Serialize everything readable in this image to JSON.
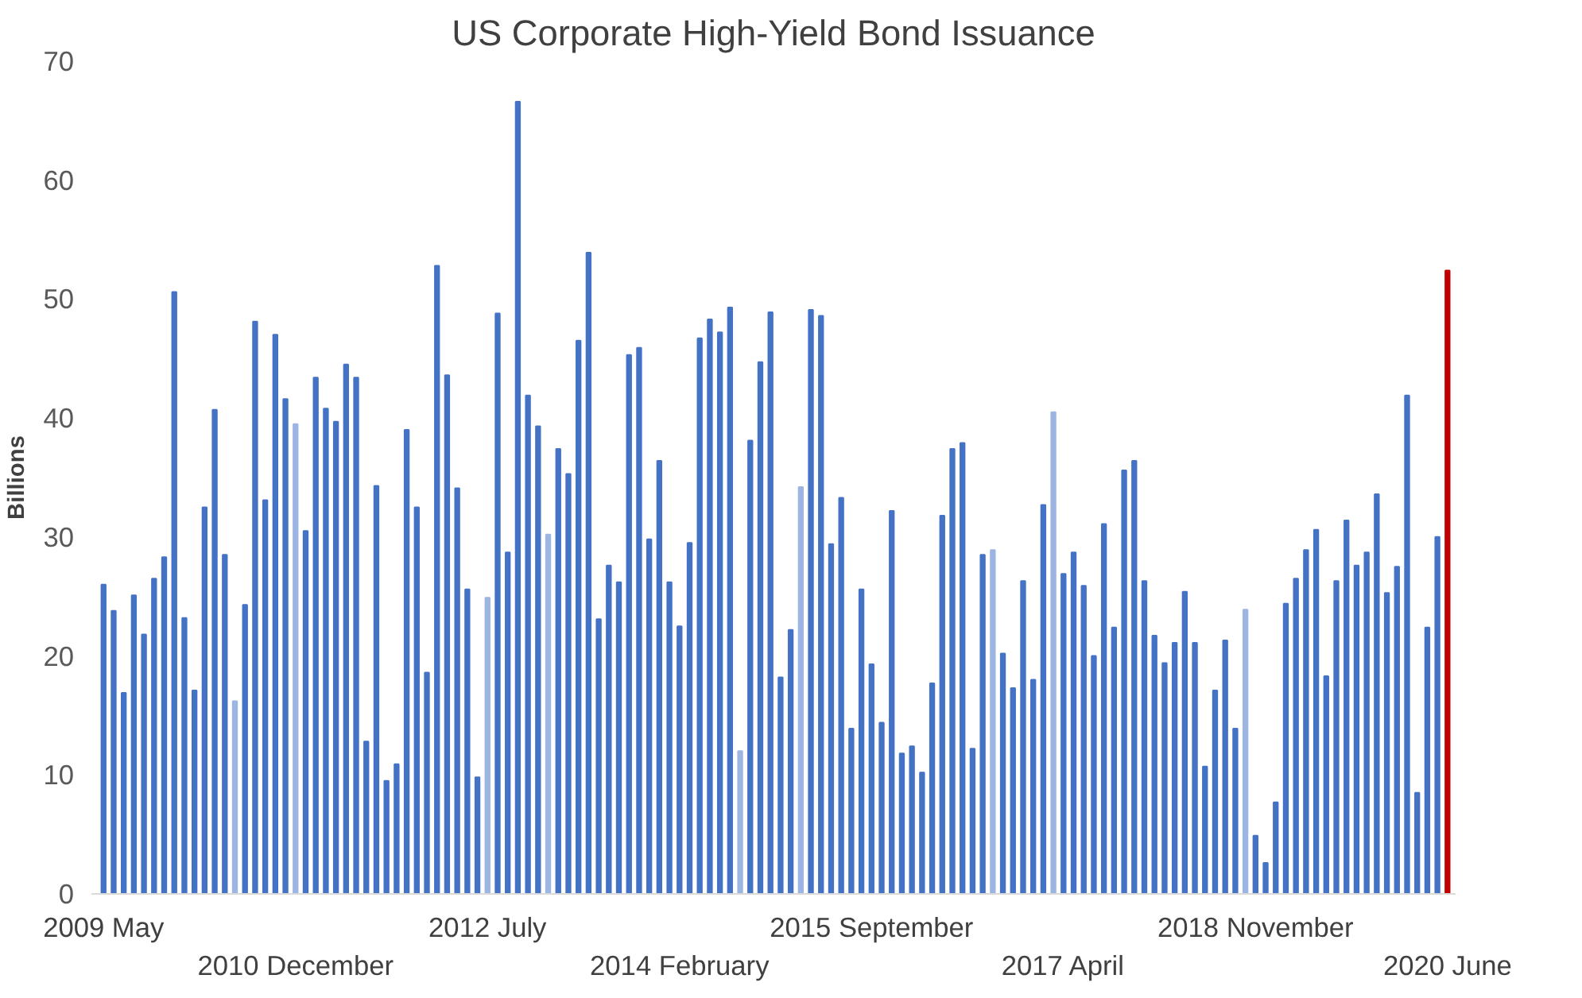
{
  "chart_data": {
    "type": "bar",
    "title": "US Corporate High-Yield Bond Issuance",
    "ylabel": "Billions",
    "categories": [
      "2009 May",
      null,
      null,
      null,
      null,
      null,
      null,
      null,
      null,
      null,
      null,
      null,
      null,
      null,
      null,
      null,
      null,
      null,
      null,
      "2010 December",
      null,
      null,
      null,
      null,
      null,
      null,
      null,
      null,
      null,
      null,
      null,
      null,
      null,
      null,
      null,
      null,
      null,
      null,
      "2012 July",
      null,
      null,
      null,
      null,
      null,
      null,
      null,
      null,
      null,
      null,
      null,
      null,
      null,
      null,
      null,
      null,
      null,
      null,
      "2014 February",
      null,
      null,
      null,
      null,
      null,
      null,
      null,
      null,
      null,
      null,
      null,
      null,
      null,
      null,
      null,
      null,
      null,
      null,
      "2015 September",
      null,
      null,
      null,
      null,
      null,
      null,
      null,
      null,
      null,
      null,
      null,
      null,
      null,
      null,
      null,
      null,
      null,
      null,
      "2017 April",
      null,
      null,
      null,
      null,
      null,
      null,
      null,
      null,
      null,
      null,
      null,
      null,
      null,
      null,
      null,
      null,
      null,
      null,
      "2018 November",
      null,
      null,
      null,
      null,
      null,
      null,
      null,
      null,
      null,
      null,
      null,
      null,
      null,
      null,
      null,
      null,
      null,
      null,
      "2020 June"
    ],
    "values": [
      26.0,
      23.8,
      16.9,
      25.1,
      21.8,
      26.5,
      28.3,
      50.6,
      23.2,
      17.1,
      32.5,
      40.7,
      28.5,
      16.2,
      24.3,
      48.1,
      33.1,
      47.0,
      41.6,
      39.5,
      30.5,
      43.4,
      40.8,
      39.7,
      44.5,
      43.4,
      12.8,
      34.3,
      9.5,
      10.9,
      39.0,
      32.5,
      18.6,
      52.8,
      43.6,
      34.1,
      25.6,
      9.8,
      24.9,
      48.8,
      28.7,
      66.6,
      41.9,
      39.3,
      30.2,
      37.4,
      35.3,
      46.5,
      53.9,
      23.1,
      27.6,
      26.2,
      45.3,
      45.9,
      29.8,
      36.4,
      26.2,
      22.5,
      29.5,
      46.7,
      48.3,
      47.2,
      49.3,
      12.0,
      38.1,
      44.7,
      48.9,
      18.2,
      22.2,
      34.2,
      49.1,
      48.6,
      29.4,
      33.3,
      13.9,
      25.6,
      19.3,
      14.4,
      32.2,
      11.8,
      12.4,
      10.2,
      17.7,
      31.8,
      37.4,
      37.9,
      12.2,
      28.5,
      28.9,
      20.2,
      17.3,
      26.3,
      18.0,
      32.7,
      40.5,
      26.9,
      28.7,
      25.9,
      20.0,
      31.1,
      22.4,
      35.6,
      36.4,
      26.3,
      21.7,
      19.4,
      21.1,
      25.4,
      21.1,
      10.7,
      17.1,
      21.3,
      13.9,
      23.9,
      4.9,
      2.6,
      7.7,
      24.4,
      26.5,
      28.9,
      30.6,
      18.3,
      26.3,
      31.4,
      27.6,
      28.7,
      33.6,
      25.3,
      27.5,
      41.9,
      8.5,
      22.4,
      30.0,
      52.4
    ],
    "colors": [
      "#4472c4",
      "#4472c4",
      "#4472c4",
      "#4472c4",
      "#4472c4",
      "#4472c4",
      "#4472c4",
      "#4472c4",
      "#4472c4",
      "#4472c4",
      "#4472c4",
      "#4472c4",
      "#4472c4",
      "#9db5e3",
      "#4472c4",
      "#4472c4",
      "#4472c4",
      "#4472c4",
      "#4472c4",
      "#9db5e3",
      "#4472c4",
      "#4472c4",
      "#4472c4",
      "#4472c4",
      "#4472c4",
      "#4472c4",
      "#4472c4",
      "#4472c4",
      "#4472c4",
      "#4472c4",
      "#4472c4",
      "#4472c4",
      "#4472c4",
      "#4472c4",
      "#4472c4",
      "#4472c4",
      "#4472c4",
      "#4472c4",
      "#9db5e3",
      "#4472c4",
      "#4472c4",
      "#4472c4",
      "#4472c4",
      "#4472c4",
      "#9db5e3",
      "#4472c4",
      "#4472c4",
      "#4472c4",
      "#4472c4",
      "#4472c4",
      "#4472c4",
      "#4472c4",
      "#4472c4",
      "#4472c4",
      "#4472c4",
      "#4472c4",
      "#4472c4",
      "#4472c4",
      "#4472c4",
      "#4472c4",
      "#4472c4",
      "#4472c4",
      "#4472c4",
      "#9db5e3",
      "#4472c4",
      "#4472c4",
      "#4472c4",
      "#4472c4",
      "#4472c4",
      "#9db5e3",
      "#4472c4",
      "#4472c4",
      "#4472c4",
      "#4472c4",
      "#4472c4",
      "#4472c4",
      "#4472c4",
      "#4472c4",
      "#4472c4",
      "#4472c4",
      "#4472c4",
      "#4472c4",
      "#4472c4",
      "#4472c4",
      "#4472c4",
      "#4472c4",
      "#4472c4",
      "#4472c4",
      "#9db5e3",
      "#4472c4",
      "#4472c4",
      "#4472c4",
      "#4472c4",
      "#4472c4",
      "#9db5e3",
      "#4472c4",
      "#4472c4",
      "#4472c4",
      "#4472c4",
      "#4472c4",
      "#4472c4",
      "#4472c4",
      "#4472c4",
      "#4472c4",
      "#4472c4",
      "#4472c4",
      "#4472c4",
      "#4472c4",
      "#4472c4",
      "#4472c4",
      "#4472c4",
      "#4472c4",
      "#4472c4",
      "#9db5e3",
      "#4472c4",
      "#4472c4",
      "#4472c4",
      "#4472c4",
      "#4472c4",
      "#4472c4",
      "#4472c4",
      "#4472c4",
      "#4472c4",
      "#4472c4",
      "#4472c4",
      "#4472c4",
      "#4472c4",
      "#4472c4",
      "#4472c4",
      "#4472c4",
      "#4472c4",
      "#4472c4",
      "#4472c4",
      "#c00000"
    ],
    "ylim": [
      0,
      70
    ],
    "yticks": [
      0,
      10,
      20,
      30,
      40,
      50,
      60,
      70
    ],
    "grid": false
  }
}
